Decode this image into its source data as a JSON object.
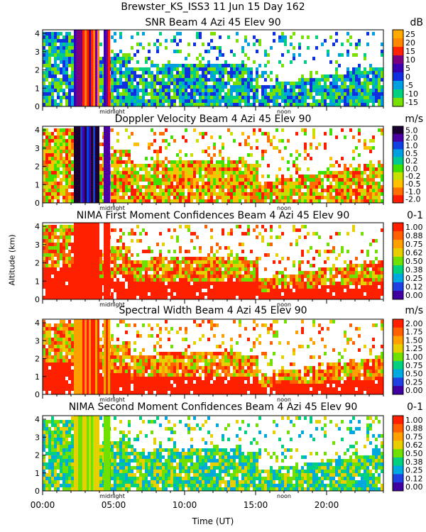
{
  "figure_title": "Brewster_KS_ISS3  11 Jun 15 Day 162",
  "y_axis_title": "Altitude (km)",
  "x_axis_title": "Time (UT)",
  "annotations": {
    "midnight": "midnight",
    "noon": "noon"
  },
  "chart_data": [
    {
      "type": "heatmap",
      "title": "SNR Beam 4 Azi  45 Elev 90",
      "unit": "dB",
      "y_ticks": [
        "0",
        "1",
        "2",
        "3",
        "4"
      ],
      "ylim": [
        0,
        4.2
      ],
      "x_ticks": [
        "00:00",
        "05:00",
        "10:00",
        "15:00",
        "20:00"
      ],
      "xlim_hours": [
        0,
        24
      ],
      "colorbar_labels": [
        "25",
        "20",
        "15",
        "10",
        "5",
        "0",
        "-5",
        "-10",
        "-15"
      ],
      "colorbar_colors": [
        "#ffaa00",
        "#ff8800",
        "#ff2200",
        "#7a0080",
        "#3a00b0",
        "#1030e0",
        "#00a0e0",
        "#00d080",
        "#7ae000"
      ]
    },
    {
      "type": "heatmap",
      "title": "Doppler Velocity Beam 4 Azi  45 Elev 90",
      "unit": "m/s",
      "y_ticks": [
        "0",
        "1",
        "2",
        "3",
        "4"
      ],
      "ylim": [
        0,
        4.2
      ],
      "x_ticks": [
        "00:00",
        "05:00",
        "10:00",
        "15:00",
        "20:00"
      ],
      "xlim_hours": [
        0,
        24
      ],
      "colorbar_labels": [
        "5.0",
        "2.0",
        "1.0",
        "0.5",
        "0.2",
        "0.0",
        "-0.2",
        "-0.5",
        "-1.0",
        "-2.0"
      ],
      "colorbar_colors": [
        "#1a0030",
        "#4a00a0",
        "#1040e0",
        "#00a0e0",
        "#00c890",
        "#40e000",
        "#c8e000",
        "#ffc000",
        "#ff7000",
        "#ff1a00"
      ]
    },
    {
      "type": "heatmap",
      "title": "NIMA First Moment Confidences Beam 4 Azi  45 Elev 90",
      "unit": "0-1",
      "y_ticks": [
        "0",
        "1",
        "2",
        "3",
        "4"
      ],
      "ylim": [
        0,
        4.2
      ],
      "x_ticks": [
        "00:00",
        "05:00",
        "10:00",
        "15:00",
        "20:00"
      ],
      "xlim_hours": [
        0,
        24
      ],
      "colorbar_labels": [
        "1.00",
        "0.88",
        "0.75",
        "0.62",
        "0.50",
        "0.38",
        "0.25",
        "0.12",
        "0.00"
      ],
      "colorbar_colors": [
        "#ff2000",
        "#ff6000",
        "#ffa000",
        "#e8d000",
        "#70e000",
        "#00d080",
        "#00a8e0",
        "#2040e0",
        "#4000a0"
      ]
    },
    {
      "type": "heatmap",
      "title": "Spectral Width Beam 4 Azi  45 Elev 90",
      "unit": "m/s",
      "y_ticks": [
        "0",
        "1",
        "2",
        "3",
        "4"
      ],
      "ylim": [
        0,
        4.2
      ],
      "x_ticks": [
        "00:00",
        "05:00",
        "10:00",
        "15:00",
        "20:00"
      ],
      "xlim_hours": [
        0,
        24
      ],
      "colorbar_labels": [
        "2.00",
        "1.75",
        "1.50",
        "1.25",
        "1.00",
        "0.75",
        "0.50",
        "0.25",
        "0.00"
      ],
      "colorbar_colors": [
        "#ff2000",
        "#ff6000",
        "#ffa000",
        "#e8d000",
        "#70e000",
        "#00d080",
        "#00a8e0",
        "#2040e0",
        "#4000a0"
      ]
    },
    {
      "type": "heatmap",
      "title": "NIMA Second Moment Confidences Beam 4 Azi  45 Elev 90",
      "unit": "0-1",
      "y_ticks": [
        "0",
        "1",
        "2",
        "3",
        "4"
      ],
      "ylim": [
        0,
        4.2
      ],
      "x_ticks": [
        "00:00",
        "05:00",
        "10:00",
        "15:00",
        "20:00"
      ],
      "xlim_hours": [
        0,
        24
      ],
      "colorbar_labels": [
        "1.00",
        "0.88",
        "0.75",
        "0.62",
        "0.50",
        "0.38",
        "0.25",
        "0.12",
        "0.00"
      ],
      "colorbar_colors": [
        "#ff2000",
        "#ff6000",
        "#ffa000",
        "#e8d000",
        "#70e000",
        "#00d080",
        "#00a8e0",
        "#2040e0",
        "#4000a0"
      ]
    }
  ]
}
